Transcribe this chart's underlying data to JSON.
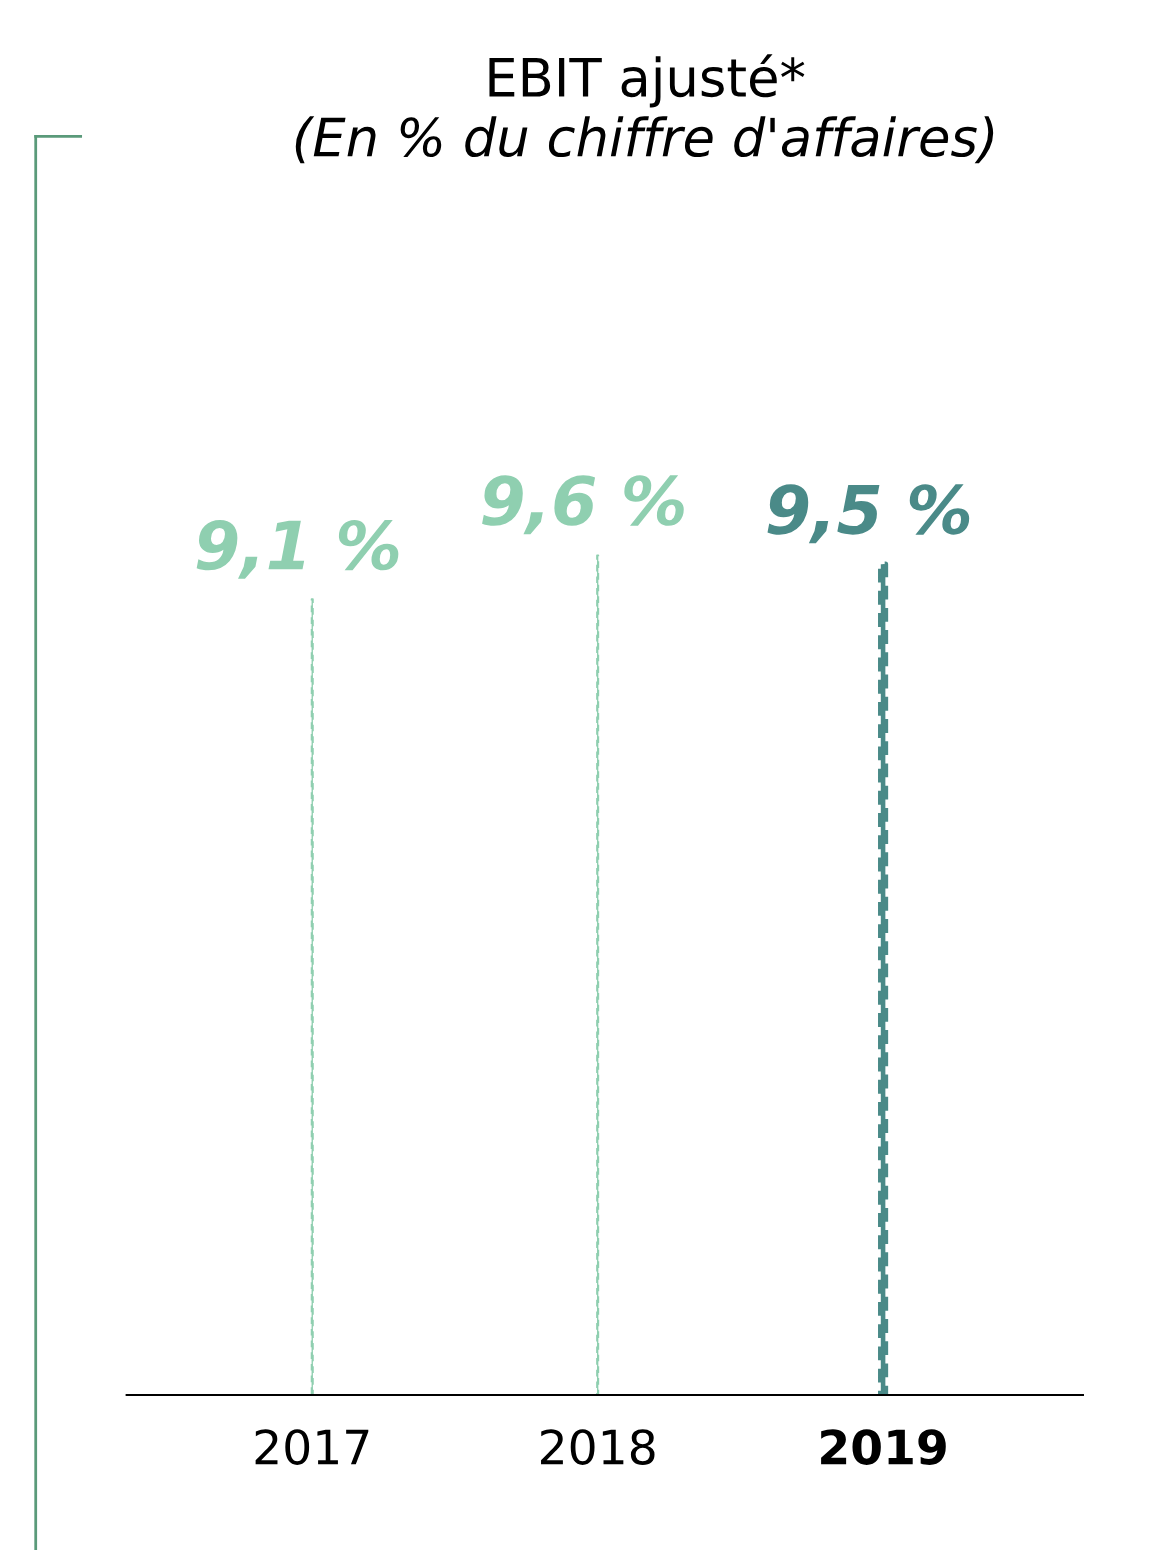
{
  "chart_data": {
    "type": "bar",
    "title": "EBIT ajusté*",
    "subtitle": "(En % du chiffre d'affaires)",
    "categories": [
      "2017",
      "2018",
      "2019"
    ],
    "series": [
      {
        "values": [
          9.1,
          9.6,
          9.5
        ],
        "colors": [
          "#8fcfb0",
          "#8fcfb0",
          "#4a8a88"
        ],
        "value_labels": [
          "9,1 %",
          "9,6 %",
          "9,5 %"
        ]
      }
    ],
    "line_style": "dashed",
    "grid": false,
    "legend": false
  }
}
